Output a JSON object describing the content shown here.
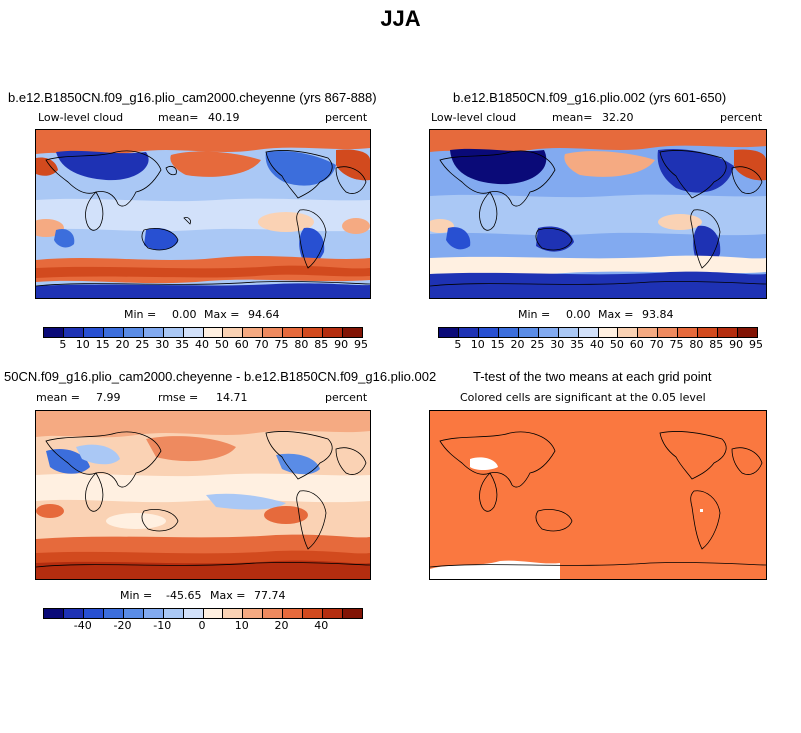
{
  "figure": {
    "title": "JJA"
  },
  "panels": [
    {
      "id": "test",
      "title": "b.e12.B1850CN.f09_g16.plio_cam2000.cheyenne (yrs 867-888)",
      "variable": "Low-level cloud",
      "stat_label": "mean=",
      "stat_value": "40.19",
      "units": "percent",
      "min_label": "Min =",
      "min_value": "0.00",
      "max_label": "Max =",
      "max_value": "94.64"
    },
    {
      "id": "control",
      "title": "b.e12.B1850CN.f09_g16.plio.002 (yrs 601-650)",
      "variable": "Low-level cloud",
      "stat_label": "mean=",
      "stat_value": "32.20",
      "units": "percent",
      "min_label": "Min =",
      "min_value": "0.00",
      "max_label": "Max =",
      "max_value": "93.84"
    },
    {
      "id": "difference",
      "title": "50CN.f09_g16.plio_cam2000.cheyenne - b.e12.B1850CN.f09_g16.plio.002",
      "mean_label": "mean =",
      "mean_value": "7.99",
      "rmse_label": "rmse =",
      "rmse_value": "14.71",
      "units": "percent",
      "min_label": "Min =",
      "min_value": "-45.65",
      "max_label": "Max =",
      "max_value": "77.74"
    },
    {
      "id": "ttest",
      "title": "T-test of the two means at each grid point",
      "subtitle": "Colored cells are significant at the 0.05 level"
    }
  ],
  "colorbars": {
    "absolute": {
      "colors": [
        "#0a0a78",
        "#1e32b4",
        "#2850d2",
        "#3c6edc",
        "#5a8ce6",
        "#82aaf0",
        "#aac8f5",
        "#d2e1fa",
        "#fff0e1",
        "#fad2b4",
        "#f5aa82",
        "#ee8a5f",
        "#e66a3c",
        "#d24a1e",
        "#b42d0f",
        "#821405"
      ],
      "labels": [
        "5",
        "10",
        "15",
        "20",
        "25",
        "30",
        "35",
        "40",
        "50",
        "60",
        "70",
        "75",
        "80",
        "85",
        "90",
        "95"
      ]
    },
    "difference": {
      "colors": [
        "#0a0a78",
        "#1e32b4",
        "#2850d2",
        "#3c6edc",
        "#5a8ce6",
        "#82aaf0",
        "#aac8f5",
        "#d2e1fa",
        "#fff0e1",
        "#fad2b4",
        "#f5aa82",
        "#ee8a5f",
        "#e66a3c",
        "#d24a1e",
        "#b42d0f",
        "#821405"
      ],
      "labels": [
        "-40",
        "-20",
        "-10",
        "0",
        "10",
        "20",
        "40"
      ]
    }
  },
  "colors": {
    "land_outline": "#000000",
    "significant": "#fa7840"
  }
}
